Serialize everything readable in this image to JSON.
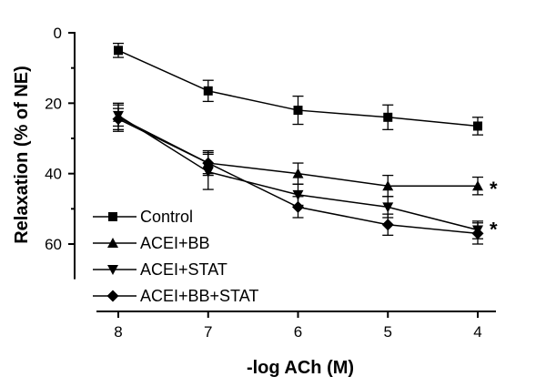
{
  "chart_data": {
    "type": "line",
    "title": "",
    "xlabel": "-log ACh (M)",
    "ylabel": "Relaxation (% of NE)",
    "x_ticks": [
      "8",
      "7",
      "6",
      "5",
      "4"
    ],
    "y_ticks": [
      "0",
      "20",
      "40",
      "60"
    ],
    "xlim": [
      8.2,
      3.85
    ],
    "ylim": [
      0,
      70
    ],
    "y_inverted": true,
    "x_reversed": true,
    "grid": false,
    "legend_position": "bottom-left",
    "series": [
      {
        "name": "Control",
        "marker": "square",
        "x": [
          8,
          7,
          6,
          5,
          4
        ],
        "y": [
          5,
          16.5,
          22,
          24,
          26.5
        ],
        "err": [
          2,
          3,
          4,
          3.5,
          2.5
        ]
      },
      {
        "name": "ACEI+BB",
        "marker": "triangle-up",
        "x": [
          8,
          7,
          6,
          5,
          4
        ],
        "y": [
          24,
          37,
          40,
          43.5,
          43.5
        ],
        "err": [
          4,
          3.5,
          3,
          3,
          2.5
        ]
      },
      {
        "name": "ACEI+STAT",
        "marker": "triangle-down",
        "x": [
          8,
          7,
          6,
          5,
          4
        ],
        "y": [
          23.5,
          39.5,
          46,
          49.5,
          56
        ],
        "err": [
          3,
          5,
          3,
          3,
          2.5
        ]
      },
      {
        "name": "ACEI+BB+STAT",
        "marker": "diamond",
        "x": [
          8,
          7,
          6,
          5,
          4
        ],
        "y": [
          24.5,
          37,
          49.5,
          54.5,
          57
        ],
        "err": [
          3,
          3,
          3,
          3,
          3
        ]
      }
    ],
    "annotations": [
      {
        "text": "*",
        "x": 4,
        "y": 43.5
      },
      {
        "text": "*",
        "x": 4,
        "y": 55
      }
    ]
  }
}
